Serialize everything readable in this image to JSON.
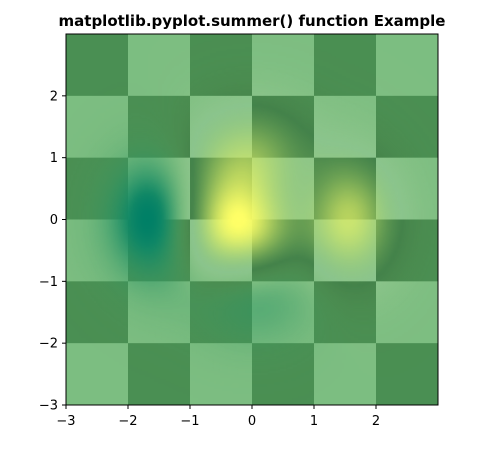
{
  "chart_data": {
    "type": "heatmap",
    "title": "matplotlib.pyplot.summer() function Example",
    "xlabel": "",
    "ylabel": "",
    "colormap": "summer",
    "colormap_endpoints": [
      "#008066",
      "#FFFF66"
    ],
    "blend": "checkerboard overlay (alpha 0.9) with smooth function image (alpha 0.9, bilinear)",
    "checkerboard": {
      "extent": [
        -3,
        3,
        -3,
        3
      ],
      "rows": 6,
      "cols": 6,
      "values": [
        [
          0,
          1,
          0,
          1,
          0,
          1
        ],
        [
          1,
          0,
          1,
          0,
          1,
          0
        ],
        [
          0,
          1,
          0,
          1,
          0,
          1
        ],
        [
          1,
          0,
          1,
          0,
          1,
          0
        ],
        [
          0,
          1,
          0,
          1,
          0,
          1
        ],
        [
          1,
          0,
          1,
          0,
          1,
          0
        ]
      ],
      "dark_color": "#3b7a47",
      "light_color": "#8cc592"
    },
    "function": {
      "formula": "(1 - x/2 + x^5 + y^3) * exp(-x^2 - y^2)",
      "extent": [
        -3,
        3,
        -3,
        3
      ],
      "grid_step": 0.1
    },
    "xlim": [
      -3,
      3
    ],
    "ylim": [
      -3,
      3
    ],
    "xticks": [
      "−3",
      "−2",
      "−1",
      "0",
      "1",
      "2"
    ],
    "yticks": [
      "−3",
      "−2",
      "−1",
      "0",
      "1",
      "2"
    ],
    "xtick_values": [
      -3,
      -2,
      -1,
      0,
      1,
      2
    ],
    "ytick_values": [
      -3,
      -2,
      -1,
      0,
      1,
      2
    ],
    "grid": false,
    "legend": "none"
  }
}
